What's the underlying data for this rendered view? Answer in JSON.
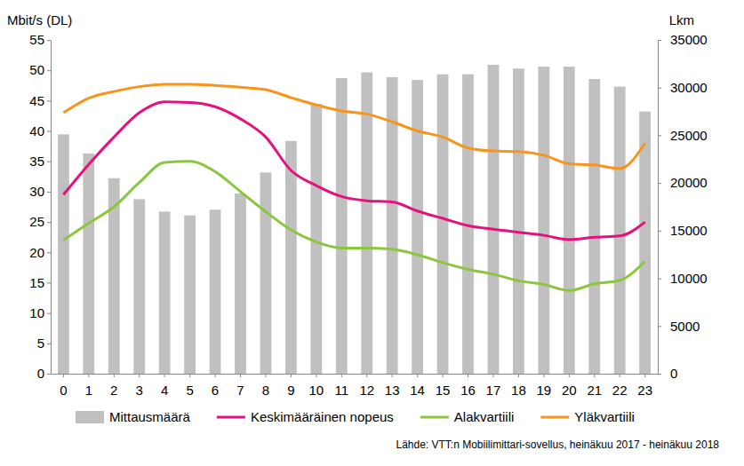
{
  "chart_data": {
    "type": "bar",
    "ylabel": "Mbit/s (DL)",
    "y2label": "Lkm",
    "annotations": [
      "Lähde: VTT:n Mobiilimittari-sovellus, heinäkuu 2017 - heinäkuu 2018"
    ],
    "categories": [
      "0",
      "1",
      "2",
      "3",
      "4",
      "5",
      "6",
      "7",
      "8",
      "9",
      "10",
      "11",
      "12",
      "13",
      "14",
      "15",
      "16",
      "17",
      "18",
      "19",
      "20",
      "21",
      "22",
      "23"
    ],
    "series": [
      {
        "name": "Mittausmäärä",
        "type": "bar",
        "axis": "y2",
        "color": "#c0c0c0",
        "values": [
          25100,
          23100,
          20500,
          18300,
          17000,
          16600,
          17200,
          18900,
          21100,
          24400,
          28300,
          31000,
          31600,
          31100,
          30800,
          31400,
          31400,
          32400,
          32000,
          32200,
          32200,
          30900,
          30100,
          27500
        ]
      },
      {
        "name": "Keskimääräinen nopeus",
        "type": "line",
        "color": "#e5127d",
        "values": [
          29.5,
          34.5,
          39,
          43,
          44.8,
          44.7,
          44,
          42,
          39,
          33.5,
          31,
          29.2,
          28.5,
          28.3,
          26.8,
          25.6,
          24.4,
          23.8,
          23.3,
          22.8,
          22.1,
          22.5,
          22.7,
          25
        ]
      },
      {
        "name": "Alakvartiili",
        "type": "line",
        "color": "#8cc63e",
        "values": [
          22,
          24.8,
          27.5,
          31.5,
          34.8,
          35,
          33.3,
          30,
          26.7,
          23.7,
          21.7,
          20.7,
          20.7,
          20.5,
          19.6,
          18.3,
          17.2,
          16.4,
          15.3,
          14.7,
          13.7,
          14.8,
          15.4,
          18.5
        ]
      },
      {
        "name": "Yläkvartiili",
        "type": "line",
        "color": "#f7941d",
        "values": [
          43,
          45.4,
          46.5,
          47.3,
          47.7,
          47.7,
          47.5,
          47.2,
          46.8,
          45.5,
          44.3,
          43.3,
          42.8,
          41.5,
          40,
          39,
          37.2,
          36.7,
          36.6,
          36,
          34.6,
          34.4,
          33.8,
          38
        ]
      }
    ],
    "ylim": [
      0,
      55
    ],
    "yticks": [
      0,
      5,
      10,
      15,
      20,
      25,
      30,
      35,
      40,
      45,
      50,
      55
    ],
    "y2lim": [
      0,
      35000
    ],
    "y2ticks": [
      0,
      5000,
      10000,
      15000,
      20000,
      25000,
      30000,
      35000
    ],
    "grid": false,
    "legend": "bottom"
  }
}
